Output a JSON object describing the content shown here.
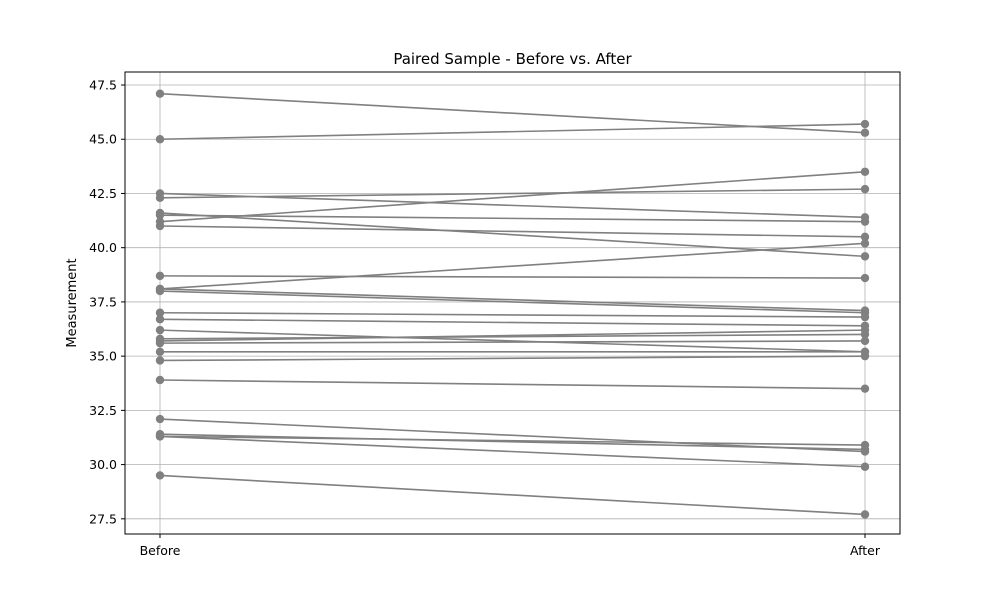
{
  "chart_data": {
    "type": "line",
    "title": "Paired Sample - Before vs. After",
    "xlabel": "",
    "ylabel": "Measurement",
    "categories": [
      "Before",
      "After"
    ],
    "ylim": [
      26.8,
      48.1
    ],
    "yticks": [
      "27.5",
      "30.0",
      "32.5",
      "35.0",
      "37.5",
      "40.0",
      "42.5",
      "45.0",
      "47.5"
    ],
    "grid": true,
    "line_color": "#808080",
    "pairs": [
      [
        47.1,
        45.3
      ],
      [
        45.0,
        45.7
      ],
      [
        42.5,
        41.4
      ],
      [
        42.3,
        42.7
      ],
      [
        41.6,
        39.6
      ],
      [
        41.5,
        41.2
      ],
      [
        41.2,
        43.5
      ],
      [
        41.0,
        40.5
      ],
      [
        38.7,
        38.6
      ],
      [
        38.1,
        37.1
      ],
      [
        38.1,
        40.2
      ],
      [
        38.0,
        37.0
      ],
      [
        37.0,
        36.8
      ],
      [
        36.7,
        36.4
      ],
      [
        36.2,
        35.2
      ],
      [
        35.8,
        36.0
      ],
      [
        35.7,
        36.2
      ],
      [
        35.6,
        35.7
      ],
      [
        35.2,
        35.2
      ],
      [
        34.8,
        35.0
      ],
      [
        33.9,
        33.5
      ],
      [
        32.1,
        30.6
      ],
      [
        31.4,
        30.7
      ],
      [
        31.3,
        30.9
      ],
      [
        31.3,
        29.9
      ],
      [
        29.5,
        27.7
      ]
    ]
  }
}
